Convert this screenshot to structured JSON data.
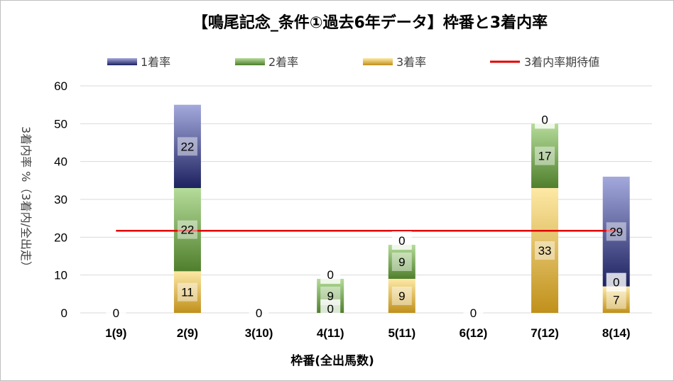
{
  "chart_data": {
    "type": "bar",
    "stacked": true,
    "title": "【鳴尾記念_条件①過去6年データ】枠番と3着内率",
    "xlabel": "枠番(全出馬数)",
    "ylabel": "3着内率 %（3着内/全出走）",
    "ylim": [
      0,
      60
    ],
    "yticks": [
      0,
      10,
      20,
      30,
      40,
      50,
      60
    ],
    "grid": true,
    "legend_position": "top",
    "categories": [
      "1(9)",
      "2(9)",
      "3(10)",
      "4(11)",
      "5(11)",
      "6(12)",
      "7(12)",
      "8(14)"
    ],
    "series": [
      {
        "name": "3着率",
        "values": [
          0,
          11,
          0,
          0,
          9,
          0,
          33,
          7
        ],
        "color_top": "#fde9a6",
        "color_bottom": "#c0901a"
      },
      {
        "name": "2着率",
        "values": [
          0,
          22,
          0,
          9,
          9,
          0,
          17,
          0
        ],
        "color_top": "#b5dc9a",
        "color_bottom": "#4f7f2c"
      },
      {
        "name": "1着率",
        "values": [
          0,
          22,
          0,
          0,
          0,
          0,
          0,
          29
        ],
        "color_top": "#a4a9dc",
        "color_bottom": "#1d2260"
      }
    ],
    "reference_line": {
      "name": "3着内率期待値",
      "value": 21.7,
      "color": "#e00000"
    }
  }
}
